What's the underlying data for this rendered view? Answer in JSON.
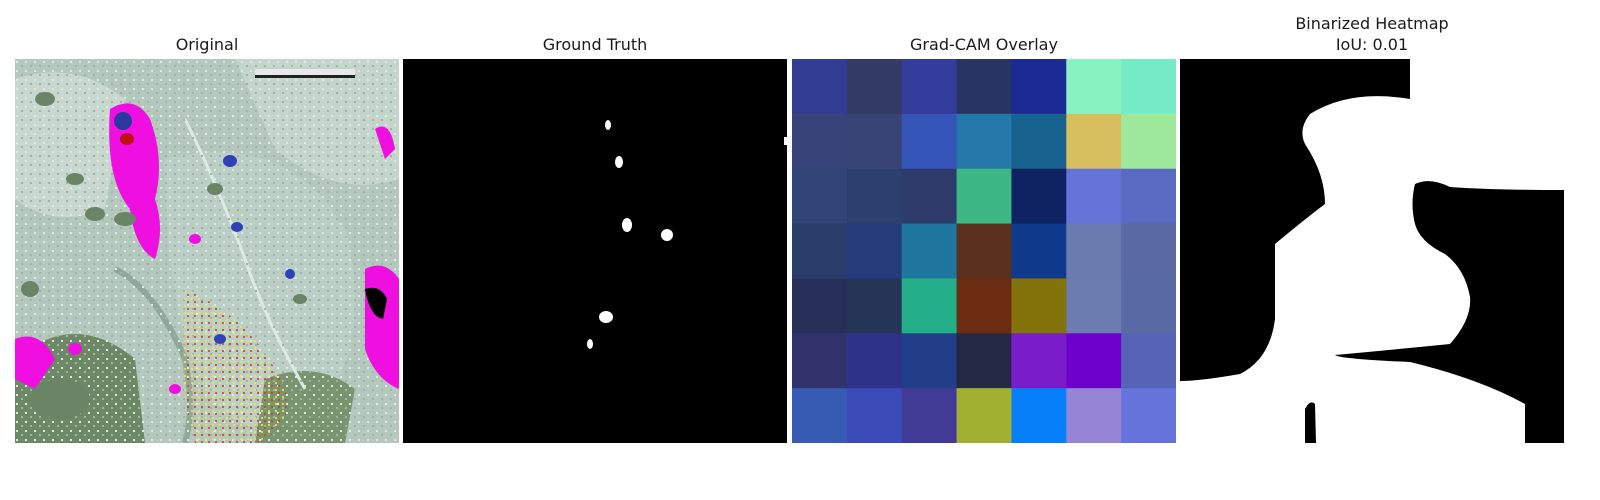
{
  "panels": [
    {
      "title": "Original"
    },
    {
      "title": "Ground Truth"
    },
    {
      "title": "Grad-CAM Overlay"
    },
    {
      "title": "Binarized Heatmap",
      "subtitle": "IoU: 0.01"
    }
  ],
  "gradcam_grid": [
    [
      "#333c93",
      "#333a66",
      "#343d9b",
      "#283462",
      "#1c2a94",
      "#87f3be",
      "#76ecc6"
    ],
    [
      "#38437a",
      "#374475",
      "#3655b9",
      "#2778aa",
      "#17628f",
      "#d7bf60",
      "#9de89a"
    ],
    [
      "#334577",
      "#2c3f6f",
      "#2c3b6a",
      "#3db884",
      "#0f2262",
      "#6573d9",
      "#5a69c2"
    ],
    [
      "#283d6a",
      "#243c7a",
      "#1f779f",
      "#5b311e",
      "#0f3a8c",
      "#6b7aaf",
      "#5b6aa3"
    ],
    [
      "#283059",
      "#253558",
      "#24af8a",
      "#6c2c11",
      "#82740a",
      "#6c7cb0",
      "#5a6aa4"
    ],
    [
      "#33316c",
      "#2e3289",
      "#233e88",
      "#232944",
      "#7a1cca",
      "#6e00cc",
      "#5564b5"
    ],
    [
      "#355bb2",
      "#3a4ab7",
      "#423b96",
      "#a1b030",
      "#067ff8",
      "#9486d4",
      "#6573db"
    ]
  ]
}
